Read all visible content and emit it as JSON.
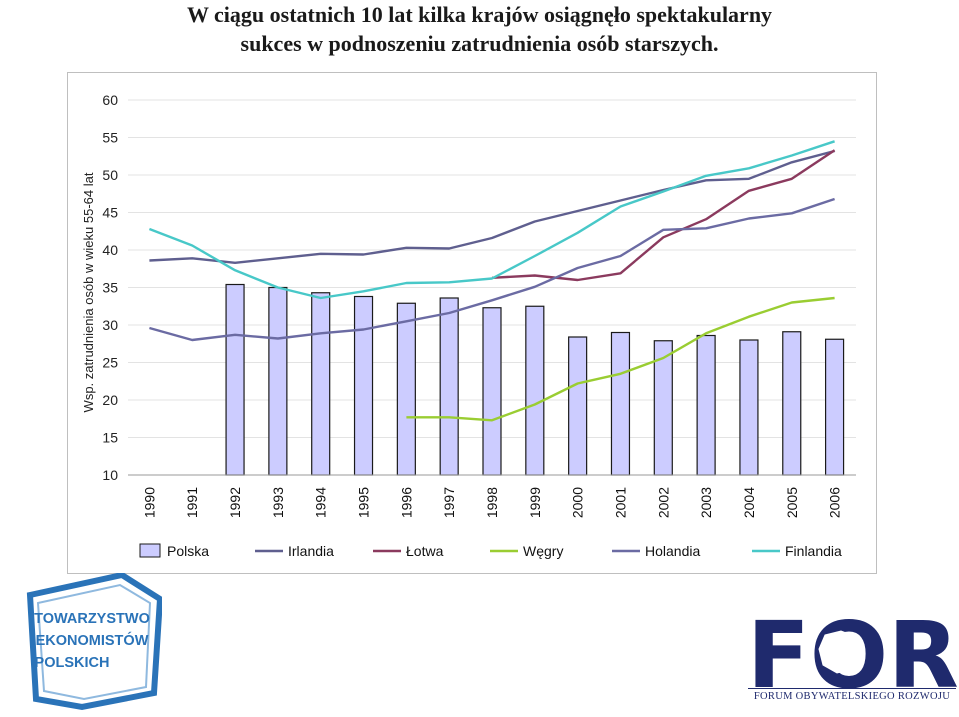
{
  "title": {
    "line1": "W ciągu ostatnich 10 lat kilka krajów osiągnęło spektakularny",
    "line2": "sukces w podnoszeniu zatrudnienia osób starszych."
  },
  "chart_data": {
    "type": "bar",
    "title": "",
    "xlabel": "",
    "ylabel": "Wsp. zatrudnienia osób w wieku 55-64 lat",
    "ylim": [
      10,
      60
    ],
    "yticks": [
      10,
      15,
      20,
      25,
      30,
      35,
      40,
      45,
      50,
      55,
      60
    ],
    "grid": true,
    "legend_position": "bottom",
    "categories": [
      "1990",
      "1991",
      "1992",
      "1993",
      "1994",
      "1995",
      "1996",
      "1997",
      "1998",
      "1999",
      "2000",
      "2001",
      "2002",
      "2003",
      "2004",
      "2005",
      "2006"
    ],
    "series": [
      {
        "name": "Polska",
        "kind": "bar",
        "color": "#ccccff",
        "values": [
          null,
          null,
          35.4,
          35.0,
          34.3,
          33.8,
          32.9,
          33.6,
          32.3,
          32.5,
          28.4,
          29.0,
          27.9,
          28.6,
          28.0,
          29.1,
          28.1
        ]
      },
      {
        "name": "Irlandia",
        "kind": "line",
        "color": "#5f5f8f",
        "values": [
          38.6,
          38.9,
          38.3,
          38.9,
          39.5,
          39.4,
          40.3,
          40.2,
          41.6,
          43.8,
          45.2,
          46.6,
          48.0,
          49.3,
          49.5,
          51.7,
          53.2
        ]
      },
      {
        "name": "Łotwa",
        "kind": "line",
        "color": "#8b3a5e",
        "values": [
          null,
          null,
          null,
          null,
          null,
          null,
          null,
          null,
          36.3,
          36.6,
          36.0,
          36.9,
          41.7,
          44.1,
          47.9,
          49.5,
          53.3
        ]
      },
      {
        "name": "Węgry",
        "kind": "line",
        "color": "#9acd32",
        "values": [
          null,
          null,
          null,
          null,
          null,
          null,
          17.7,
          17.7,
          17.3,
          19.4,
          22.2,
          23.5,
          25.6,
          28.9,
          31.1,
          33.0,
          33.6
        ]
      },
      {
        "name": "Holandia",
        "kind": "line",
        "color": "#6b6ba3",
        "values": [
          29.6,
          28.0,
          28.7,
          28.2,
          28.9,
          29.4,
          30.5,
          31.6,
          33.3,
          35.1,
          37.6,
          39.2,
          42.7,
          42.9,
          44.2,
          44.9,
          46.8
        ]
      },
      {
        "name": "Finlandia",
        "kind": "line",
        "color": "#48c8c8",
        "values": [
          42.8,
          40.6,
          37.3,
          35.0,
          33.6,
          34.5,
          35.6,
          35.7,
          36.2,
          39.2,
          42.3,
          45.8,
          47.8,
          49.9,
          50.9,
          52.6,
          54.5
        ]
      }
    ]
  },
  "logos": {
    "tep_lines": [
      "TOWARZYSTWO",
      "EKONOMISTÓW",
      "POLSKICH"
    ],
    "for_mark": "FOR",
    "for_caption": "FORUM OBYWATELSKIEGO ROZWOJU"
  }
}
